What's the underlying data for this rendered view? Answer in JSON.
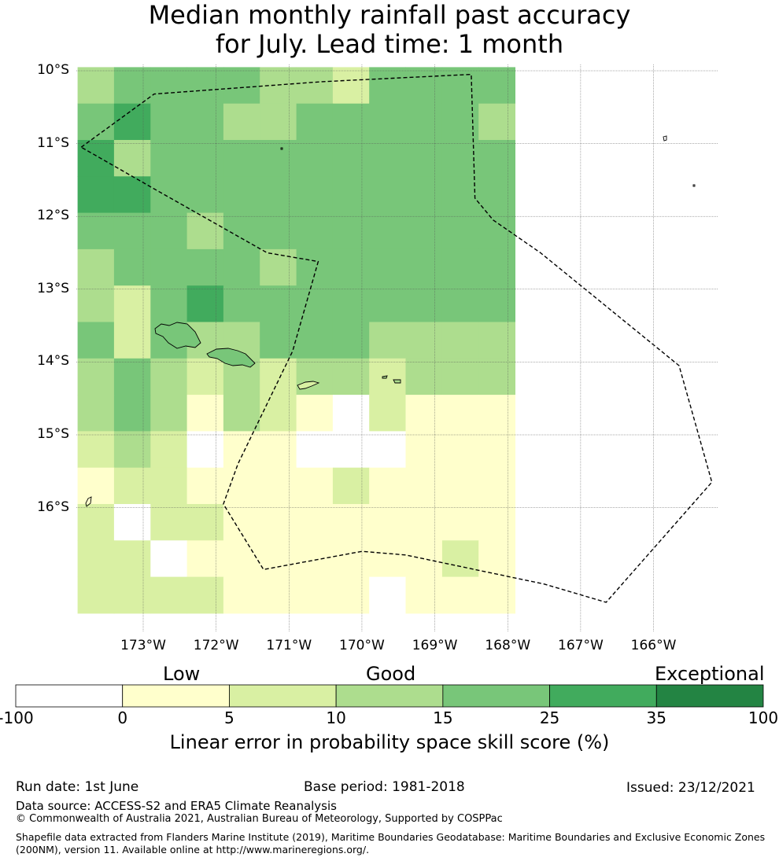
{
  "title": {
    "line1": "Median monthly rainfall past accuracy",
    "line2": "for July. Lead time: 1 month"
  },
  "map": {
    "lat_labels": [
      "10°S",
      "11°S",
      "12°S",
      "13°S",
      "14°S",
      "15°S",
      "16°S"
    ],
    "lon_labels": [
      "173°W",
      "172°W",
      "171°W",
      "170°W",
      "169°W",
      "168°W",
      "167°W",
      "166°W"
    ],
    "grid_lon_start": -173.9,
    "grid_lat_start": -9.95,
    "cell_deg": 0.5,
    "skill_grid": [
      [
        3,
        4,
        4,
        4,
        4,
        3,
        3,
        2,
        4,
        4,
        4,
        4
      ],
      [
        4,
        5,
        4,
        4,
        3,
        3,
        4,
        4,
        4,
        4,
        4,
        3
      ],
      [
        5,
        3,
        4,
        4,
        4,
        4,
        4,
        4,
        4,
        4,
        4,
        4
      ],
      [
        5,
        5,
        4,
        4,
        4,
        4,
        4,
        4,
        4,
        4,
        4,
        4
      ],
      [
        4,
        4,
        4,
        3,
        4,
        4,
        4,
        4,
        4,
        4,
        4,
        4
      ],
      [
        3,
        4,
        4,
        4,
        4,
        3,
        4,
        4,
        4,
        4,
        4,
        4
      ],
      [
        3,
        2,
        4,
        5,
        4,
        4,
        4,
        4,
        4,
        4,
        4,
        4
      ],
      [
        4,
        2,
        4,
        3,
        3,
        4,
        4,
        4,
        3,
        3,
        3,
        3
      ],
      [
        3,
        4,
        3,
        2,
        3,
        2,
        3,
        3,
        2,
        3,
        3,
        3
      ],
      [
        3,
        4,
        3,
        1,
        3,
        2,
        1,
        0,
        2,
        1,
        1,
        1
      ],
      [
        2,
        3,
        2,
        0,
        1,
        1,
        0,
        0,
        0,
        1,
        1,
        1
      ],
      [
        1,
        2,
        2,
        1,
        1,
        1,
        1,
        2,
        1,
        1,
        1,
        1
      ],
      [
        2,
        0,
        2,
        2,
        1,
        1,
        1,
        1,
        1,
        1,
        1,
        1
      ],
      [
        2,
        2,
        0,
        1,
        1,
        1,
        1,
        1,
        1,
        1,
        2,
        1
      ],
      [
        2,
        2,
        2,
        2,
        1,
        1,
        1,
        1,
        0,
        1,
        1,
        1
      ]
    ],
    "eez_boundary": [
      [
        -173.85,
        -11.05
      ],
      [
        -172.85,
        -10.32
      ],
      [
        -170.55,
        -10.15
      ],
      [
        -168.5,
        -10.05
      ],
      [
        -168.45,
        -11.75
      ],
      [
        -168.2,
        -12.05
      ],
      [
        -167.55,
        -12.5
      ],
      [
        -165.65,
        -14.05
      ],
      [
        -165.2,
        -15.65
      ],
      [
        -166.65,
        -17.3
      ],
      [
        -167.5,
        -17.05
      ],
      [
        -169.4,
        -16.65
      ],
      [
        -170.0,
        -16.6
      ],
      [
        -171.35,
        -16.85
      ],
      [
        -171.9,
        -15.95
      ],
      [
        -171.7,
        -15.4
      ],
      [
        -170.95,
        -13.85
      ],
      [
        -170.6,
        -12.62
      ],
      [
        -171.3,
        -12.5
      ],
      [
        -172.8,
        -11.65
      ],
      [
        -173.85,
        -11.05
      ]
    ]
  },
  "colorbar": {
    "categories": [
      "Low",
      "Good",
      "Exceptional"
    ],
    "ticks": [
      "-100",
      "0",
      "5",
      "10",
      "15",
      "25",
      "35",
      "100"
    ],
    "colors": [
      "#ffffff",
      "#ffffcc",
      "#d9f0a3",
      "#addd8e",
      "#78c679",
      "#41ab5d",
      "#238443"
    ],
    "label": "Linear error in probability space skill score (%)"
  },
  "footer": {
    "run_date": "Run date: 1st June",
    "base_period": "Base period: 1981-2018",
    "issued": "Issued: 23/12/2021",
    "data_source": "Data source: ACCESS-S2 and ERA5 Climate Reanalysis",
    "copyright": "© Commonwealth of Australia 2021, Australian Bureau of Meteorology, Supported by COSPPac",
    "shapefile_line1": "Shapefile data extracted from Flanders Marine Institute (2019), Maritime Boundaries Geodatabase: Maritime Boundaries and Exclusive Economic Zones",
    "shapefile_line2": "(200NM), version 11. Available online at http://www.marineregions.org/."
  }
}
